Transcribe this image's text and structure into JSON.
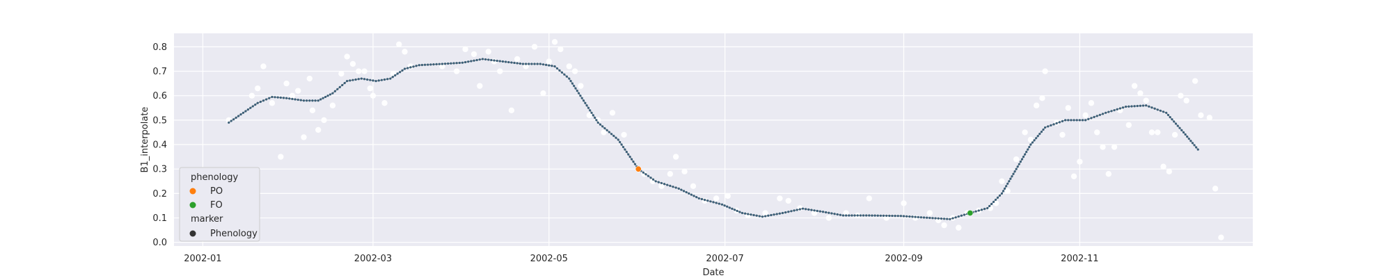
{
  "chart_data": {
    "type": "scatter",
    "xlabel": "Date",
    "ylabel": "B1_interpolate",
    "xlim": [
      "2001-12-22",
      "2002-12-31"
    ],
    "ylim": [
      -0.015,
      0.855
    ],
    "grid": true,
    "x_ticks": [
      {
        "value": "2002-01-01",
        "label": "2002-01"
      },
      {
        "value": "2002-03-01",
        "label": "2002-03"
      },
      {
        "value": "2002-05-01",
        "label": "2002-05"
      },
      {
        "value": "2002-07-01",
        "label": "2002-07"
      },
      {
        "value": "2002-09-01",
        "label": "2002-09"
      },
      {
        "value": "2002-11-01",
        "label": "2002-11"
      }
    ],
    "y_ticks": [
      {
        "value": 0.0,
        "label": "0.0"
      },
      {
        "value": 0.1,
        "label": "0.1"
      },
      {
        "value": 0.2,
        "label": "0.2"
      },
      {
        "value": 0.3,
        "label": "0.3"
      },
      {
        "value": 0.4,
        "label": "0.4"
      },
      {
        "value": 0.5,
        "label": "0.5"
      },
      {
        "value": 0.6,
        "label": "0.6"
      },
      {
        "value": 0.7,
        "label": "0.7"
      },
      {
        "value": 0.8,
        "label": "0.8"
      }
    ],
    "interpolated_curve": {
      "color": "#3b5f78",
      "points": [
        [
          "2002-01-10",
          0.49
        ],
        [
          "2002-01-15",
          0.53
        ],
        [
          "2002-01-20",
          0.57
        ],
        [
          "2002-01-25",
          0.595
        ],
        [
          "2002-01-30",
          0.59
        ],
        [
          "2002-02-05",
          0.58
        ],
        [
          "2002-02-10",
          0.58
        ],
        [
          "2002-02-15",
          0.61
        ],
        [
          "2002-02-20",
          0.66
        ],
        [
          "2002-02-25",
          0.67
        ],
        [
          "2002-03-02",
          0.66
        ],
        [
          "2002-03-07",
          0.67
        ],
        [
          "2002-03-12",
          0.71
        ],
        [
          "2002-03-17",
          0.725
        ],
        [
          "2002-03-25",
          0.73
        ],
        [
          "2002-04-01",
          0.735
        ],
        [
          "2002-04-08",
          0.75
        ],
        [
          "2002-04-15",
          0.74
        ],
        [
          "2002-04-22",
          0.73
        ],
        [
          "2002-04-28",
          0.73
        ],
        [
          "2002-05-03",
          0.72
        ],
        [
          "2002-05-08",
          0.67
        ],
        [
          "2002-05-13",
          0.58
        ],
        [
          "2002-05-18",
          0.49
        ],
        [
          "2002-05-25",
          0.42
        ],
        [
          "2002-06-01",
          0.3
        ],
        [
          "2002-06-07",
          0.25
        ],
        [
          "2002-06-15",
          0.22
        ],
        [
          "2002-06-22",
          0.18
        ],
        [
          "2002-06-30",
          0.155
        ],
        [
          "2002-07-07",
          0.12
        ],
        [
          "2002-07-14",
          0.105
        ],
        [
          "2002-07-21",
          0.12
        ],
        [
          "2002-07-28",
          0.138
        ],
        [
          "2002-08-04",
          0.125
        ],
        [
          "2002-08-11",
          0.11
        ],
        [
          "2002-08-20",
          0.11
        ],
        [
          "2002-08-31",
          0.108
        ],
        [
          "2002-09-10",
          0.1
        ],
        [
          "2002-09-17",
          0.095
        ],
        [
          "2002-09-24",
          0.12
        ],
        [
          "2002-09-30",
          0.14
        ],
        [
          "2002-10-05",
          0.2
        ],
        [
          "2002-10-10",
          0.3
        ],
        [
          "2002-10-15",
          0.4
        ],
        [
          "2002-10-20",
          0.47
        ],
        [
          "2002-10-27",
          0.5
        ],
        [
          "2002-11-03",
          0.5
        ],
        [
          "2002-11-10",
          0.53
        ],
        [
          "2002-11-17",
          0.555
        ],
        [
          "2002-11-24",
          0.56
        ],
        [
          "2002-12-01",
          0.53
        ],
        [
          "2002-12-07",
          0.45
        ],
        [
          "2002-12-12",
          0.38
        ]
      ]
    },
    "observations": {
      "color": "#ffffff",
      "points": [
        [
          "2002-01-10",
          0.5
        ],
        [
          "2002-01-18",
          0.6
        ],
        [
          "2002-01-20",
          0.63
        ],
        [
          "2002-01-22",
          0.72
        ],
        [
          "2002-01-25",
          0.57
        ],
        [
          "2002-01-28",
          0.35
        ],
        [
          "2002-01-30",
          0.65
        ],
        [
          "2002-02-01",
          0.6
        ],
        [
          "2002-02-03",
          0.62
        ],
        [
          "2002-02-05",
          0.43
        ],
        [
          "2002-02-07",
          0.67
        ],
        [
          "2002-02-08",
          0.54
        ],
        [
          "2002-02-10",
          0.46
        ],
        [
          "2002-02-12",
          0.5
        ],
        [
          "2002-02-15",
          0.56
        ],
        [
          "2002-02-18",
          0.69
        ],
        [
          "2002-02-20",
          0.76
        ],
        [
          "2002-02-22",
          0.73
        ],
        [
          "2002-02-24",
          0.7
        ],
        [
          "2002-02-26",
          0.7
        ],
        [
          "2002-02-28",
          0.63
        ],
        [
          "2002-03-01",
          0.6
        ],
        [
          "2002-03-05",
          0.57
        ],
        [
          "2002-03-08",
          0.69
        ],
        [
          "2002-03-10",
          0.81
        ],
        [
          "2002-03-12",
          0.78
        ],
        [
          "2002-03-14",
          0.72
        ],
        [
          "2002-03-25",
          0.72
        ],
        [
          "2002-03-30",
          0.7
        ],
        [
          "2002-04-02",
          0.79
        ],
        [
          "2002-04-05",
          0.77
        ],
        [
          "2002-04-07",
          0.64
        ],
        [
          "2002-04-10",
          0.78
        ],
        [
          "2002-04-12",
          0.74
        ],
        [
          "2002-04-14",
          0.7
        ],
        [
          "2002-04-18",
          0.54
        ],
        [
          "2002-04-20",
          0.75
        ],
        [
          "2002-04-23",
          0.72
        ],
        [
          "2002-04-26",
          0.8
        ],
        [
          "2002-04-29",
          0.61
        ],
        [
          "2002-05-01",
          0.74
        ],
        [
          "2002-05-03",
          0.82
        ],
        [
          "2002-05-05",
          0.79
        ],
        [
          "2002-05-08",
          0.72
        ],
        [
          "2002-05-10",
          0.7
        ],
        [
          "2002-05-12",
          0.64
        ],
        [
          "2002-05-15",
          0.52
        ],
        [
          "2002-05-18",
          0.5
        ],
        [
          "2002-05-20",
          0.45
        ],
        [
          "2002-05-23",
          0.53
        ],
        [
          "2002-05-27",
          0.44
        ],
        [
          "2002-06-03",
          0.28
        ],
        [
          "2002-06-06",
          0.25
        ],
        [
          "2002-06-09",
          0.23
        ],
        [
          "2002-06-12",
          0.28
        ],
        [
          "2002-06-14",
          0.35
        ],
        [
          "2002-06-17",
          0.29
        ],
        [
          "2002-06-20",
          0.23
        ],
        [
          "2002-06-24",
          0.17
        ],
        [
          "2002-06-28",
          0.18
        ],
        [
          "2002-07-02",
          0.19
        ],
        [
          "2002-07-05",
          0.13
        ],
        [
          "2002-07-09",
          0.11
        ],
        [
          "2002-07-15",
          0.12
        ],
        [
          "2002-07-20",
          0.18
        ],
        [
          "2002-07-23",
          0.17
        ],
        [
          "2002-07-27",
          0.14
        ],
        [
          "2002-08-01",
          0.12
        ],
        [
          "2002-08-06",
          0.1
        ],
        [
          "2002-08-12",
          0.12
        ],
        [
          "2002-08-16",
          0.11
        ],
        [
          "2002-08-20",
          0.18
        ],
        [
          "2002-08-26",
          0.1
        ],
        [
          "2002-09-01",
          0.16
        ],
        [
          "2002-09-05",
          0.1
        ],
        [
          "2002-09-10",
          0.12
        ],
        [
          "2002-09-13",
          0.09
        ],
        [
          "2002-09-15",
          0.07
        ],
        [
          "2002-09-18",
          0.1
        ],
        [
          "2002-09-20",
          0.06
        ],
        [
          "2002-09-23",
          0.12
        ],
        [
          "2002-09-27",
          0.13
        ],
        [
          "2002-10-01",
          0.14
        ],
        [
          "2002-10-03",
          0.16
        ],
        [
          "2002-10-05",
          0.25
        ],
        [
          "2002-10-07",
          0.21
        ],
        [
          "2002-10-10",
          0.34
        ],
        [
          "2002-10-13",
          0.45
        ],
        [
          "2002-10-15",
          0.42
        ],
        [
          "2002-10-17",
          0.56
        ],
        [
          "2002-10-19",
          0.59
        ],
        [
          "2002-10-20",
          0.7
        ],
        [
          "2002-10-24",
          0.49
        ],
        [
          "2002-10-26",
          0.44
        ],
        [
          "2002-10-28",
          0.55
        ],
        [
          "2002-10-30",
          0.27
        ],
        [
          "2002-11-01",
          0.33
        ],
        [
          "2002-11-03",
          0.52
        ],
        [
          "2002-11-05",
          0.57
        ],
        [
          "2002-11-07",
          0.45
        ],
        [
          "2002-11-09",
          0.39
        ],
        [
          "2002-11-11",
          0.28
        ],
        [
          "2002-11-13",
          0.39
        ],
        [
          "2002-11-15",
          0.54
        ],
        [
          "2002-11-18",
          0.48
        ],
        [
          "2002-11-20",
          0.64
        ],
        [
          "2002-11-22",
          0.61
        ],
        [
          "2002-11-24",
          0.58
        ],
        [
          "2002-11-26",
          0.45
        ],
        [
          "2002-11-28",
          0.45
        ],
        [
          "2002-11-30",
          0.31
        ],
        [
          "2002-12-02",
          0.29
        ],
        [
          "2002-12-04",
          0.44
        ],
        [
          "2002-12-06",
          0.6
        ],
        [
          "2002-12-08",
          0.58
        ],
        [
          "2002-12-11",
          0.66
        ],
        [
          "2002-12-13",
          0.52
        ],
        [
          "2002-12-16",
          0.51
        ],
        [
          "2002-12-18",
          0.22
        ],
        [
          "2002-12-20",
          0.02
        ]
      ]
    },
    "phenology_points": [
      {
        "name": "PO",
        "x": "2002-06-01",
        "y": 0.3,
        "color": "#ff7f0e"
      },
      {
        "name": "FO",
        "x": "2002-09-24",
        "y": 0.12,
        "color": "#2ca02c"
      }
    ],
    "legend": {
      "placement": "lower-left",
      "title": "phenology",
      "entries": [
        {
          "label": "PO",
          "color": "#ff7f0e"
        },
        {
          "label": "FO",
          "color": "#2ca02c"
        }
      ],
      "marker_title": "marker",
      "marker_entries": [
        {
          "label": "Phenology",
          "color": "#333333"
        }
      ]
    },
    "colors": {
      "plot_background": "#eaeaf2",
      "grid": "#ffffff",
      "curve": "#3b5f78"
    }
  }
}
